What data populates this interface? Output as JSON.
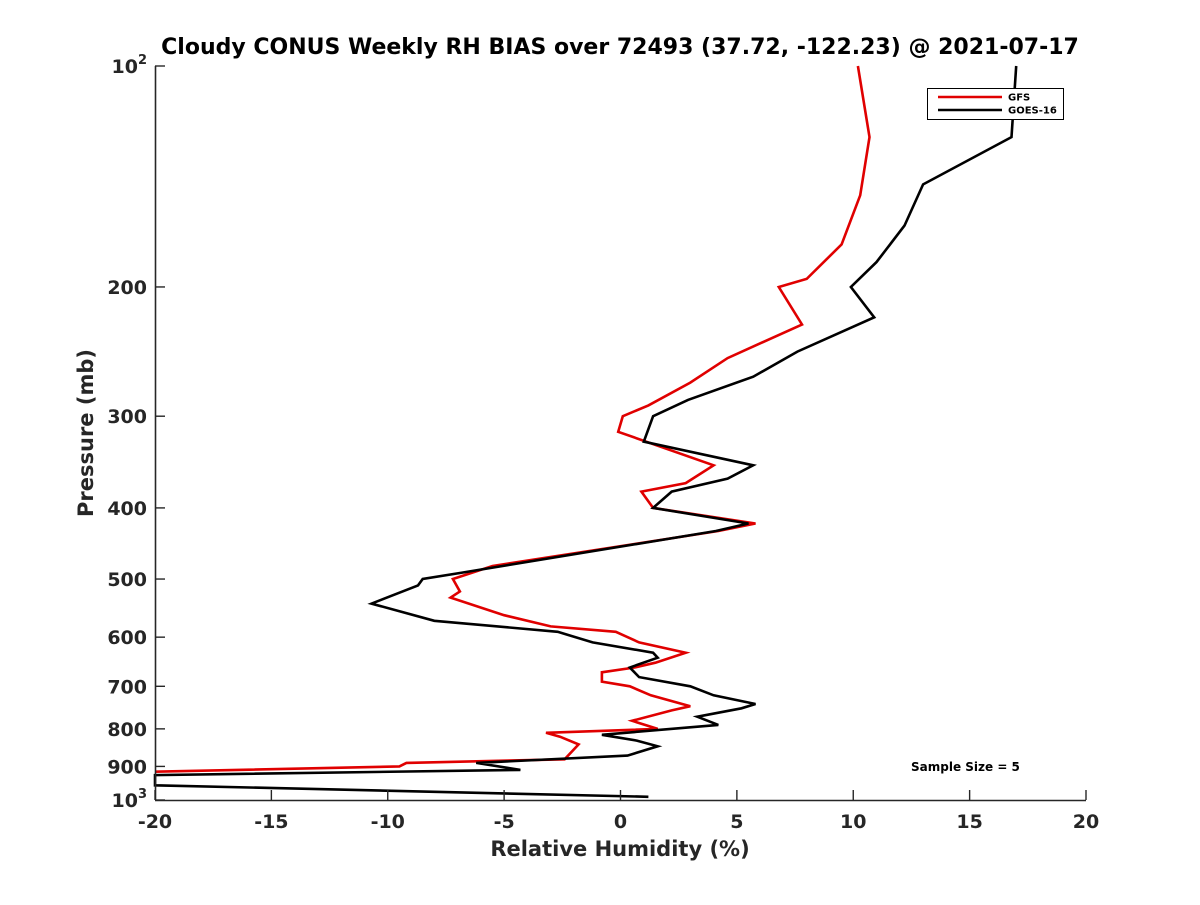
{
  "chart_data": {
    "type": "line",
    "title": "Cloudy CONUS Weekly RH BIAS over 72493 (37.72, -122.23) @ 2021-07-17",
    "xlabel": "Relative Humidity (%)",
    "ylabel": "Pressure (mb)",
    "xlim": [
      -20,
      20
    ],
    "ylim": [
      100,
      1000
    ],
    "y_scale": "log",
    "y_reversed": true,
    "x_ticks": [
      "-20",
      "-15",
      "-10",
      "-5",
      "0",
      "5",
      "10",
      "15",
      "20"
    ],
    "y_ticks": [
      {
        "value": 100,
        "base": "10",
        "exp": "2"
      },
      {
        "value": 200,
        "label": "200"
      },
      {
        "value": 300,
        "label": "300"
      },
      {
        "value": 400,
        "label": "400"
      },
      {
        "value": 500,
        "label": "500"
      },
      {
        "value": 600,
        "label": "600"
      },
      {
        "value": 700,
        "label": "700"
      },
      {
        "value": 800,
        "label": "800"
      },
      {
        "value": 900,
        "label": "900"
      },
      {
        "value": 1000,
        "base": "10",
        "exp": "3"
      }
    ],
    "grid": false,
    "legend_position": "top-right",
    "annotation": "Sample Size = 5",
    "series": [
      {
        "name": "GFS",
        "color": "#e00000",
        "points": [
          [
            10.2,
            100
          ],
          [
            10.7,
            125
          ],
          [
            10.3,
            150
          ],
          [
            9.5,
            175
          ],
          [
            8.0,
            195
          ],
          [
            6.8,
            200
          ],
          [
            7.8,
            225
          ],
          [
            4.6,
            250
          ],
          [
            3.0,
            270
          ],
          [
            1.2,
            290
          ],
          [
            0.1,
            300
          ],
          [
            -0.1,
            315
          ],
          [
            4.0,
            350
          ],
          [
            2.8,
            370
          ],
          [
            0.9,
            380
          ],
          [
            1.4,
            400
          ],
          [
            5.8,
            420
          ],
          [
            4.2,
            430
          ],
          [
            -5.5,
            480
          ],
          [
            -7.2,
            500
          ],
          [
            -6.9,
            520
          ],
          [
            -7.3,
            530
          ],
          [
            -5.0,
            560
          ],
          [
            -3.0,
            580
          ],
          [
            -0.2,
            590
          ],
          [
            0.8,
            610
          ],
          [
            2.8,
            630
          ],
          [
            1.5,
            650
          ],
          [
            0.6,
            660
          ],
          [
            -0.8,
            670
          ],
          [
            -0.8,
            690
          ],
          [
            0.4,
            700
          ],
          [
            1.3,
            720
          ],
          [
            3.0,
            745
          ],
          [
            2.2,
            755
          ],
          [
            0.5,
            780
          ],
          [
            1.6,
            800
          ],
          [
            -3.2,
            810
          ],
          [
            -2.6,
            820
          ],
          [
            -1.8,
            840
          ],
          [
            -2.4,
            880
          ],
          [
            -9.2,
            890
          ],
          [
            -9.5,
            900
          ],
          [
            -20.0,
            915
          ]
        ]
      },
      {
        "name": "GOES-16",
        "color": "#000000",
        "points": [
          [
            17.0,
            100
          ],
          [
            16.8,
            125
          ],
          [
            13.0,
            145
          ],
          [
            12.2,
            165
          ],
          [
            11.0,
            185
          ],
          [
            9.9,
            200
          ],
          [
            10.9,
            220
          ],
          [
            7.6,
            245
          ],
          [
            5.7,
            265
          ],
          [
            2.9,
            285
          ],
          [
            1.4,
            300
          ],
          [
            1.0,
            325
          ],
          [
            5.7,
            350
          ],
          [
            4.6,
            365
          ],
          [
            2.2,
            380
          ],
          [
            1.4,
            400
          ],
          [
            5.5,
            420
          ],
          [
            4.1,
            430
          ],
          [
            -6.8,
            490
          ],
          [
            -8.5,
            500
          ],
          [
            -8.7,
            510
          ],
          [
            -10.7,
            540
          ],
          [
            -8.0,
            570
          ],
          [
            -2.7,
            590
          ],
          [
            -1.2,
            610
          ],
          [
            1.4,
            630
          ],
          [
            1.6,
            640
          ],
          [
            0.4,
            660
          ],
          [
            0.8,
            680
          ],
          [
            3.0,
            700
          ],
          [
            4.0,
            720
          ],
          [
            5.8,
            740
          ],
          [
            5.2,
            750
          ],
          [
            3.3,
            770
          ],
          [
            4.2,
            790
          ],
          [
            -0.8,
            815
          ],
          [
            0.7,
            830
          ],
          [
            1.6,
            845
          ],
          [
            0.3,
            870
          ],
          [
            -6.2,
            890
          ],
          [
            -4.3,
            910
          ],
          [
            -20.0,
            925
          ],
          [
            -20.0,
            955
          ],
          [
            1.2,
            990
          ]
        ]
      }
    ]
  }
}
